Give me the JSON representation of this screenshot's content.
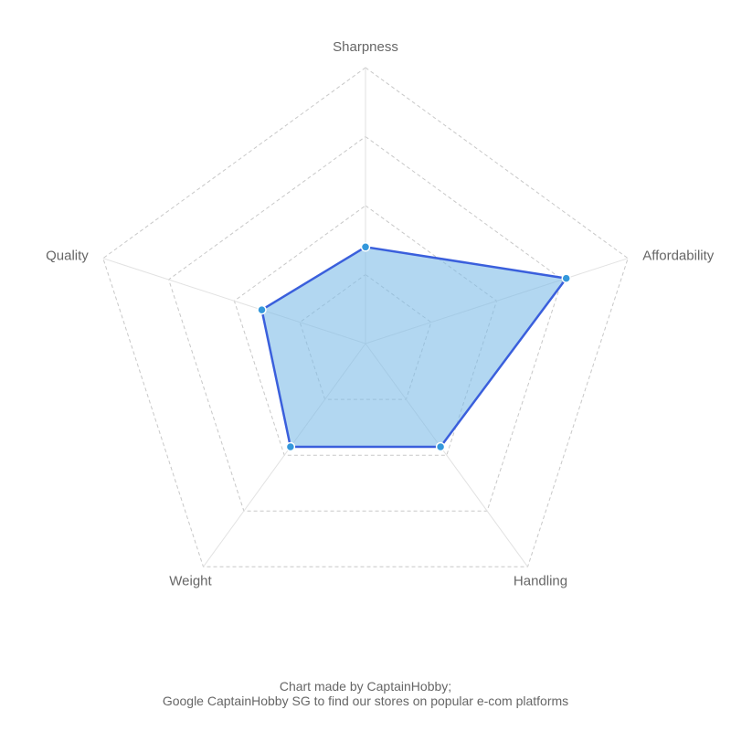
{
  "chart_data": {
    "type": "radar",
    "axes": [
      "Sharpness",
      "Affordability",
      "Handling",
      "Weight",
      "Quality"
    ],
    "ring_count": 4,
    "range": [
      0,
      4
    ],
    "grid": true,
    "series": [
      {
        "values": [
          1.4,
          3.06,
          1.85,
          1.85,
          1.58
        ]
      }
    ],
    "colors": {
      "fill": "#7fbce8",
      "stroke": "#3a5fdc",
      "point": "#3498db",
      "grid": "#c8c8c8",
      "label": "#666666"
    }
  },
  "footer": {
    "line1": "Chart made by CaptainHobby;",
    "line2": "Google CaptainHobby SG to find our stores on popular e-com platforms"
  }
}
